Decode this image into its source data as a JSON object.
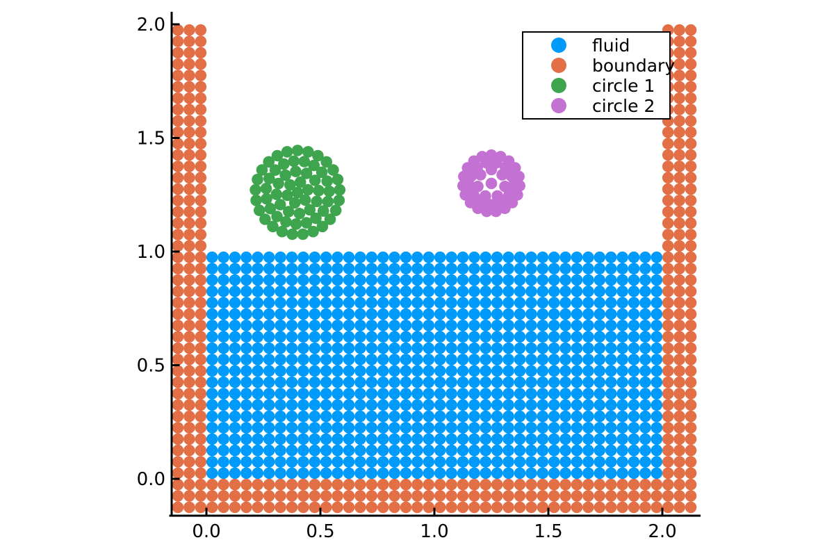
{
  "chart_data": {
    "type": "scatter",
    "title": "",
    "xlabel": "",
    "ylabel": "",
    "grid": false,
    "legend_position": "top-right",
    "x_ticks": {
      "values": [
        0.0,
        0.5,
        1.0,
        1.5,
        2.0
      ],
      "labels": [
        "0.0",
        "0.5",
        "1.0",
        "1.5",
        "2.0"
      ]
    },
    "y_ticks": {
      "values": [
        0.0,
        0.5,
        1.0,
        1.5,
        2.0
      ],
      "labels": [
        "0.0",
        "0.5",
        "1.0",
        "1.5",
        "2.0"
      ]
    },
    "xlim": [
      -0.22,
      2.22
    ],
    "ylim": [
      -0.17,
      2.06
    ],
    "particle_spacing": 0.05,
    "series": [
      {
        "name": "fluid",
        "color": "#009AFA",
        "kind": "grid",
        "particle_count": 800,
        "regions": [
          {
            "x": [
              0.025,
              1.975
            ],
            "y": [
              0.025,
              0.975
            ]
          }
        ]
      },
      {
        "name": "boundary",
        "color": "#E26F46",
        "kind": "grid",
        "particle_count": 378,
        "regions": [
          {
            "x": [
              -0.125,
              2.125
            ],
            "y": [
              -0.125,
              -0.025
            ]
          },
          {
            "x": [
              -0.125,
              -0.025
            ],
            "y": [
              0.025,
              1.975
            ]
          },
          {
            "x": [
              2.025,
              2.125
            ],
            "y": [
              0.025,
              1.975
            ]
          }
        ]
      },
      {
        "name": "circle 1",
        "color": "#3EA44E",
        "kind": "rings",
        "particle_count": 63,
        "center": [
          0.4,
          1.26
        ],
        "radius": 0.2,
        "rings": [
          {
            "r": 0.0,
            "n": 1,
            "phase": 0
          },
          {
            "r": 0.047,
            "n": 6,
            "phase": 15
          },
          {
            "r": 0.093,
            "n": 12,
            "phase": 95
          },
          {
            "r": 0.139,
            "n": 19,
            "phase": 40
          },
          {
            "r": 0.185,
            "n": 25,
            "phase": 90
          }
        ]
      },
      {
        "name": "circle 2",
        "color": "#C371D2",
        "kind": "rings",
        "particle_count": 40,
        "center": [
          1.25,
          1.3
        ],
        "radius": 0.15,
        "rings": [
          {
            "r": 0.0,
            "n": 1,
            "phase": 0
          },
          {
            "r": 0.061,
            "n": 7,
            "phase": 90
          },
          {
            "r": 0.0935,
            "n": 13,
            "phase": 270
          },
          {
            "r": 0.1245,
            "n": 19,
            "phase": 90
          }
        ]
      }
    ]
  },
  "legend": {
    "entries": [
      {
        "label": "fluid",
        "color": "#009AFA"
      },
      {
        "label": "boundary",
        "color": "#E26F46"
      },
      {
        "label": "circle 1",
        "color": "#3EA44E"
      },
      {
        "label": "circle 2",
        "color": "#C371D2"
      }
    ]
  },
  "axis_color": "#000000"
}
